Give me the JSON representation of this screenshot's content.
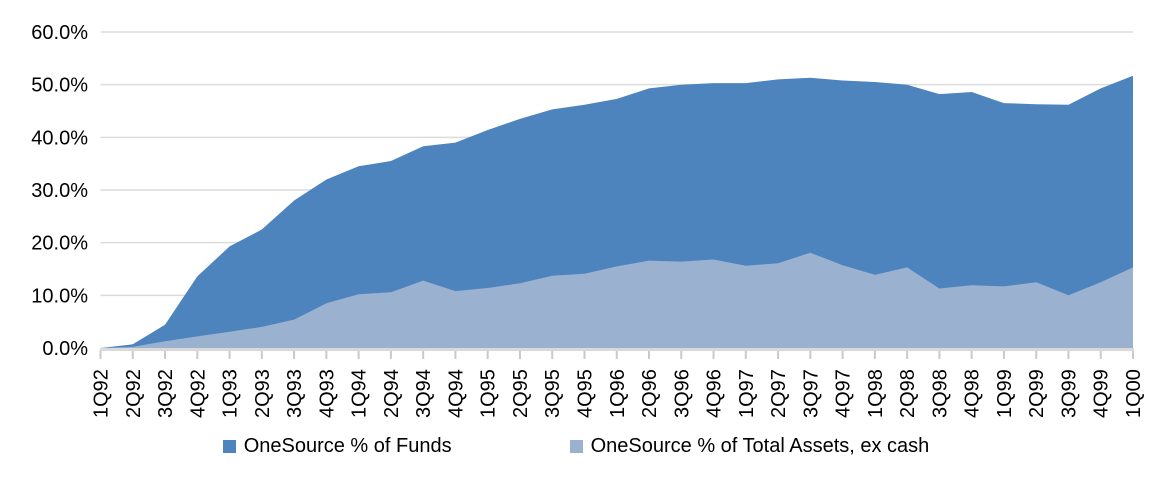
{
  "chart_data": {
    "type": "area",
    "overlap_mode": "overlay",
    "title": "",
    "xlabel": "",
    "ylabel": "",
    "categories": [
      "1Q92",
      "2Q92",
      "3Q92",
      "4Q92",
      "1Q93",
      "2Q93",
      "3Q93",
      "4Q93",
      "1Q94",
      "2Q94",
      "3Q94",
      "4Q94",
      "1Q95",
      "2Q95",
      "3Q95",
      "4Q95",
      "1Q96",
      "2Q96",
      "3Q96",
      "4Q96",
      "1Q97",
      "2Q97",
      "3Q97",
      "4Q97",
      "1Q98",
      "2Q98",
      "3Q98",
      "4Q98",
      "1Q99",
      "2Q99",
      "3Q99",
      "4Q99",
      "1Q00"
    ],
    "series": [
      {
        "name": "OneSource % of Funds",
        "color": "#4E84BD",
        "values": [
          0.0,
          0.7,
          4.4,
          13.6,
          19.3,
          22.5,
          28.0,
          32.0,
          34.5,
          35.5,
          38.3,
          39.0,
          41.4,
          43.5,
          45.3,
          46.2,
          47.3,
          49.3,
          50.0,
          50.3,
          50.3,
          51.0,
          51.3,
          50.8,
          50.5,
          50.0,
          48.2,
          48.6,
          46.5,
          46.3,
          46.2,
          49.3,
          51.7
        ]
      },
      {
        "name": "OneSource % of Total Assets, ex cash",
        "color": "#9BB1D0",
        "values": [
          0.0,
          0.2,
          1.3,
          2.2,
          3.1,
          4.0,
          5.4,
          8.5,
          10.2,
          10.6,
          12.8,
          10.8,
          11.4,
          12.3,
          13.7,
          14.1,
          15.5,
          16.6,
          16.4,
          16.8,
          15.6,
          16.1,
          18.1,
          15.7,
          13.9,
          15.3,
          11.3,
          11.9,
          11.7,
          12.5,
          10.0,
          12.5,
          15.3
        ]
      }
    ],
    "ylim": [
      0,
      60
    ],
    "y_tick_step": 10,
    "y_tick_labels": [
      "0.0%",
      "10.0%",
      "20.0%",
      "30.0%",
      "40.0%",
      "50.0%",
      "60.0%"
    ],
    "grid": "horizontal",
    "legend_position": "bottom",
    "x_label_rotation": -90,
    "colors": {
      "grid_line": "#DCDCDC",
      "axis_line": "#D9D9D9",
      "tick_mark": "#C9C9C9",
      "label_text": "#000000",
      "background": "#FFFFFF"
    }
  }
}
